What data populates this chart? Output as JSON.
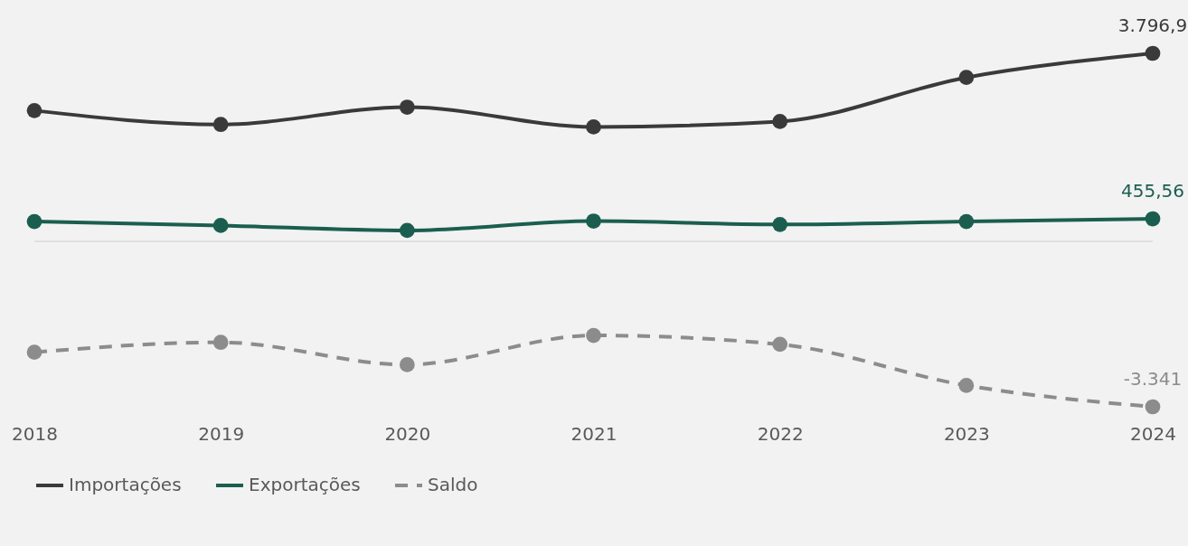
{
  "chart_data": {
    "type": "line",
    "categories": [
      "2018",
      "2019",
      "2020",
      "2021",
      "2022",
      "2023",
      "2024"
    ],
    "series": [
      {
        "name": "Importações",
        "color": "#3a3a3a",
        "line_style": "solid",
        "values": [
          2640,
          2360,
          2710,
          2310,
          2420,
          3310,
          3796.9
        ],
        "value_labels": [
          null,
          null,
          null,
          null,
          null,
          null,
          "3.796,9"
        ]
      },
      {
        "name": "Exportações",
        "color": "#1b5e4f",
        "line_style": "solid",
        "values": [
          400,
          320,
          220,
          410,
          340,
          400,
          455.56
        ],
        "value_labels": [
          null,
          null,
          null,
          null,
          null,
          null,
          "455,56"
        ]
      },
      {
        "name": "Saldo",
        "color": "#8c8c8c",
        "line_style": "dashed",
        "values": [
          -2240,
          -2040,
          -2490,
          -1900,
          -2080,
          -2910,
          -3341
        ],
        "value_labels": [
          null,
          null,
          null,
          null,
          null,
          null,
          "-3.341"
        ]
      }
    ],
    "tick_labels": "x",
    "grid": false,
    "marker": "circle",
    "legend": "bottom",
    "ref_lines": [
      {
        "axis": "y",
        "value": 0,
        "color": "#d9d9d9"
      }
    ]
  }
}
